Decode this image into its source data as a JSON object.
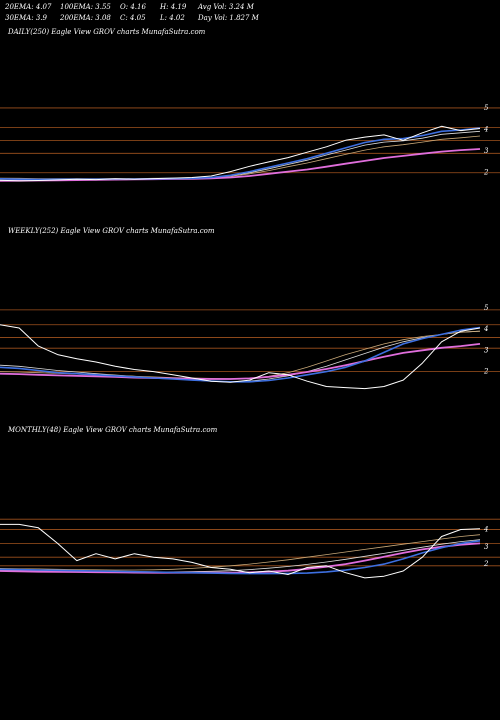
{
  "header": {
    "row1": [
      "20EMA: 4.07",
      "100EMA: 3.55",
      "O: 4.16",
      "H: 4.19",
      "Avg Vol: 3.24  M"
    ],
    "row2": [
      "30EMA: 3.9",
      "200EMA: 3.08",
      "C: 4.05",
      "L: 4.02",
      "Day Vol: 1.827 M"
    ]
  },
  "colors": {
    "background": "#000000",
    "level_line": "#a0521e",
    "price": "#ffffff",
    "ema20": "#3d6fe0",
    "ema30": "#e06edc",
    "ema_thin": "#c8a878",
    "ema_white": "#dddddd"
  },
  "chart_data": [
    {
      "type": "line",
      "name": "daily",
      "label": "DAILY(250) Eagle   View  GROV charts MunafaSutra.com",
      "ylim": [
        1.2,
        5.6
      ],
      "yticks": [
        2,
        3,
        4,
        5
      ],
      "levels": [
        5,
        4.1,
        3.5,
        2.9,
        2
      ],
      "x": [
        0,
        10,
        20,
        30,
        40,
        50,
        60,
        70,
        80,
        90,
        100,
        110,
        120,
        130,
        140,
        150,
        160,
        170,
        180,
        190,
        200,
        210,
        220,
        230,
        240,
        250
      ],
      "series": [
        {
          "key": "price",
          "values": [
            1.65,
            1.62,
            1.64,
            1.67,
            1.7,
            1.68,
            1.72,
            1.7,
            1.73,
            1.75,
            1.78,
            1.85,
            2.05,
            2.3,
            2.5,
            2.7,
            2.95,
            3.2,
            3.5,
            3.65,
            3.75,
            3.5,
            3.85,
            4.15,
            3.95,
            4.05
          ]
        },
        {
          "key": "ema20",
          "values": [
            1.72,
            1.7,
            1.69,
            1.7,
            1.7,
            1.7,
            1.71,
            1.71,
            1.72,
            1.73,
            1.74,
            1.78,
            1.88,
            2.05,
            2.25,
            2.45,
            2.65,
            2.9,
            3.15,
            3.4,
            3.55,
            3.58,
            3.72,
            3.92,
            3.98,
            4.07
          ]
        },
        {
          "key": "ema30",
          "values": [
            1.62,
            1.63,
            1.64,
            1.65,
            1.66,
            1.67,
            1.68,
            1.69,
            1.7,
            1.71,
            1.72,
            1.74,
            1.78,
            1.85,
            1.95,
            2.05,
            2.15,
            2.28,
            2.42,
            2.55,
            2.68,
            2.78,
            2.88,
            2.98,
            3.05,
            3.1
          ]
        },
        {
          "key": "ema_thin",
          "values": [
            1.75,
            1.74,
            1.73,
            1.73,
            1.73,
            1.73,
            1.73,
            1.73,
            1.74,
            1.74,
            1.75,
            1.77,
            1.83,
            1.95,
            2.1,
            2.28,
            2.45,
            2.65,
            2.85,
            3.05,
            3.2,
            3.3,
            3.42,
            3.55,
            3.62,
            3.7
          ]
        },
        {
          "key": "ema_white",
          "values": [
            1.7,
            1.69,
            1.69,
            1.69,
            1.7,
            1.7,
            1.7,
            1.71,
            1.71,
            1.72,
            1.73,
            1.76,
            1.85,
            2.0,
            2.18,
            2.38,
            2.58,
            2.82,
            3.05,
            3.28,
            3.42,
            3.48,
            3.6,
            3.78,
            3.85,
            3.92
          ]
        }
      ]
    },
    {
      "type": "line",
      "name": "weekly",
      "label": "WEEKLY(252) Eagle   View  GROV charts MunafaSutra.com",
      "ylim": [
        0.9,
        5.6
      ],
      "yticks": [
        2,
        3,
        4,
        5
      ],
      "levels": [
        4.9,
        4.2,
        3.6,
        3.1,
        2.0
      ],
      "x": [
        0,
        10,
        20,
        30,
        40,
        50,
        60,
        70,
        80,
        90,
        100,
        110,
        120,
        130,
        140,
        150,
        160,
        170,
        180,
        190,
        200,
        210,
        220,
        230,
        240,
        250
      ],
      "series": [
        {
          "key": "price",
          "values": [
            4.2,
            4.05,
            3.2,
            2.8,
            2.6,
            2.45,
            2.25,
            2.1,
            2.0,
            1.85,
            1.7,
            1.55,
            1.5,
            1.6,
            1.95,
            1.85,
            1.55,
            1.3,
            1.25,
            1.2,
            1.3,
            1.6,
            2.4,
            3.4,
            3.9,
            4.05
          ]
        },
        {
          "key": "ema20",
          "values": [
            2.2,
            2.15,
            2.05,
            1.95,
            1.9,
            1.85,
            1.8,
            1.75,
            1.7,
            1.65,
            1.6,
            1.56,
            1.52,
            1.52,
            1.58,
            1.7,
            1.85,
            2.0,
            2.2,
            2.5,
            2.9,
            3.3,
            3.55,
            3.75,
            3.95,
            4.07
          ]
        },
        {
          "key": "ema30",
          "values": [
            1.9,
            1.88,
            1.85,
            1.82,
            1.8,
            1.78,
            1.75,
            1.72,
            1.7,
            1.68,
            1.66,
            1.65,
            1.65,
            1.68,
            1.75,
            1.85,
            1.98,
            2.12,
            2.3,
            2.5,
            2.7,
            2.88,
            3.0,
            3.12,
            3.2,
            3.3
          ]
        },
        {
          "key": "ema_thin",
          "values": [
            2.0,
            1.98,
            1.95,
            1.92,
            1.88,
            1.85,
            1.82,
            1.78,
            1.75,
            1.72,
            1.7,
            1.68,
            1.66,
            1.68,
            1.78,
            1.95,
            2.2,
            2.5,
            2.8,
            3.05,
            3.3,
            3.5,
            3.65,
            3.75,
            3.85,
            3.9
          ]
        },
        {
          "key": "ema_white",
          "values": [
            2.3,
            2.25,
            2.15,
            2.05,
            1.98,
            1.9,
            1.84,
            1.78,
            1.72,
            1.66,
            1.6,
            1.55,
            1.52,
            1.55,
            1.65,
            1.8,
            2.0,
            2.25,
            2.55,
            2.85,
            3.15,
            3.4,
            3.6,
            3.75,
            3.85,
            3.9
          ]
        }
      ]
    },
    {
      "type": "line",
      "name": "monthly",
      "label": "MONTHLY(48) Eagle   View  GROV charts MunafaSutra.com",
      "ylim": [
        0.5,
        6.0
      ],
      "yticks": [
        2,
        3,
        4
      ],
      "levels": [
        4.6,
        4.0,
        3.2,
        2.4,
        1.9
      ],
      "x": [
        0,
        10,
        20,
        30,
        40,
        50,
        60,
        70,
        80,
        90,
        100,
        110,
        120,
        130,
        140,
        150,
        160,
        170,
        180,
        190,
        200,
        210,
        220,
        230,
        240,
        250
      ],
      "series": [
        {
          "key": "price",
          "values": [
            4.3,
            4.3,
            4.1,
            3.2,
            2.2,
            2.6,
            2.3,
            2.6,
            2.4,
            2.3,
            2.1,
            1.8,
            1.7,
            1.5,
            1.6,
            1.4,
            1.8,
            1.9,
            1.5,
            1.2,
            1.3,
            1.6,
            2.4,
            3.6,
            4.0,
            4.05
          ]
        },
        {
          "key": "ema20",
          "values": [
            1.7,
            1.68,
            1.66,
            1.64,
            1.62,
            1.6,
            1.58,
            1.56,
            1.54,
            1.52,
            1.5,
            1.48,
            1.46,
            1.45,
            1.45,
            1.46,
            1.48,
            1.55,
            1.65,
            1.8,
            2.0,
            2.3,
            2.65,
            2.95,
            3.2,
            3.35
          ]
        },
        {
          "key": "ema30",
          "values": [
            1.6,
            1.58,
            1.56,
            1.55,
            1.54,
            1.53,
            1.52,
            1.51,
            1.5,
            1.5,
            1.5,
            1.5,
            1.5,
            1.52,
            1.56,
            1.62,
            1.72,
            1.85,
            2.0,
            2.2,
            2.42,
            2.65,
            2.85,
            3.0,
            3.12,
            3.2
          ]
        },
        {
          "key": "ema_thin",
          "values": [
            1.75,
            1.73,
            1.72,
            1.7,
            1.68,
            1.67,
            1.66,
            1.66,
            1.67,
            1.7,
            1.75,
            1.82,
            1.9,
            2.0,
            2.12,
            2.25,
            2.4,
            2.55,
            2.7,
            2.85,
            3.0,
            3.15,
            3.3,
            3.45,
            3.6,
            3.7
          ]
        },
        {
          "key": "ema_white",
          "values": [
            1.65,
            1.64,
            1.63,
            1.62,
            1.6,
            1.58,
            1.57,
            1.56,
            1.55,
            1.55,
            1.56,
            1.58,
            1.62,
            1.68,
            1.76,
            1.86,
            1.98,
            2.12,
            2.28,
            2.45,
            2.62,
            2.8,
            2.98,
            3.15,
            3.3,
            3.42
          ]
        }
      ]
    }
  ]
}
